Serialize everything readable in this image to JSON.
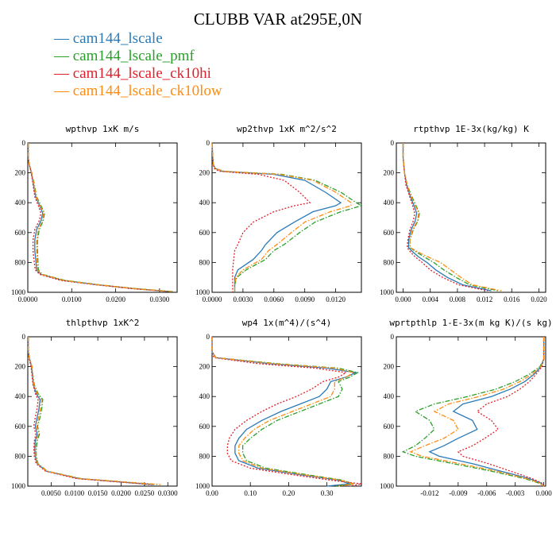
{
  "title": "CLUBB VAR at295E,0N",
  "legend": [
    {
      "label": "cam144_lscale",
      "color": "#2a7ab8"
    },
    {
      "label": "cam144_lscale_pmf",
      "color": "#2aa02a"
    },
    {
      "label": "cam144_lscale_ck10hi",
      "color": "#e0202a"
    },
    {
      "label": "cam144_lscale_ck10low",
      "color": "#ff8c10"
    }
  ],
  "series_styles": [
    "solid",
    "dashdot",
    "dotted",
    "dashdot"
  ],
  "chart_data": [
    {
      "type": "line",
      "title": "wpthvp  1xK m/s",
      "xlim": [
        0,
        0.034
      ],
      "ylim": [
        1000,
        0
      ],
      "y_inverted": true,
      "xticks": [
        "0.0000",
        "0.0100",
        "0.0200",
        "0.0300"
      ],
      "xtick_values": [
        0,
        0.01,
        0.02,
        0.03
      ],
      "yticks": [
        "0",
        "200",
        "400",
        "600",
        "800",
        "1000"
      ],
      "ytick_values": [
        0,
        200,
        400,
        600,
        800,
        1000
      ],
      "y": [
        0,
        100,
        140,
        200,
        280,
        360,
        420,
        470,
        520,
        580,
        650,
        720,
        780,
        850,
        880,
        920,
        950,
        975,
        995
      ],
      "series": [
        {
          "name": "cam144_lscale",
          "x": [
            0.0001,
            0.0001,
            0.0003,
            0.0008,
            0.0013,
            0.0018,
            0.0027,
            0.0034,
            0.003,
            0.002,
            0.0016,
            0.0016,
            0.0018,
            0.002,
            0.003,
            0.008,
            0.016,
            0.024,
            0.0325
          ]
        },
        {
          "name": "cam144_lscale_pmf",
          "x": [
            0.0001,
            0.0001,
            0.0003,
            0.0009,
            0.0015,
            0.002,
            0.003,
            0.0038,
            0.0035,
            0.0026,
            0.0022,
            0.0022,
            0.0023,
            0.0024,
            0.0033,
            0.0085,
            0.0165,
            0.0245,
            0.033
          ]
        },
        {
          "name": "cam144_lscale_ck10hi",
          "x": [
            0.0001,
            0.0001,
            0.0003,
            0.0008,
            0.0012,
            0.0016,
            0.0024,
            0.003,
            0.0026,
            0.0016,
            0.0012,
            0.0012,
            0.0014,
            0.0017,
            0.0027,
            0.0075,
            0.0155,
            0.0235,
            0.032
          ]
        },
        {
          "name": "cam144_lscale_ck10low",
          "x": [
            0.0001,
            0.0001,
            0.0003,
            0.0009,
            0.0014,
            0.0019,
            0.0028,
            0.0036,
            0.0033,
            0.0024,
            0.002,
            0.002,
            0.0021,
            0.0022,
            0.0031,
            0.0082,
            0.0162,
            0.0242,
            0.0328
          ]
        }
      ]
    },
    {
      "type": "line",
      "title": "wp2thvp  1xK m^2/s^2",
      "xlim": [
        0,
        0.0145
      ],
      "ylim": [
        1000,
        0
      ],
      "y_inverted": true,
      "xticks": [
        "0.0000",
        "0.0030",
        "0.0060",
        "0.0090",
        "0.0120"
      ],
      "xtick_values": [
        0,
        0.003,
        0.006,
        0.009,
        0.012
      ],
      "yticks": [
        "0",
        "200",
        "400",
        "600",
        "800",
        "1000"
      ],
      "ytick_values": [
        0,
        200,
        400,
        600,
        800,
        1000
      ],
      "y": [
        0,
        140,
        170,
        190,
        210,
        250,
        330,
        400,
        420,
        460,
        530,
        600,
        680,
        720,
        780,
        850,
        900,
        950,
        1000
      ],
      "series": [
        {
          "name": "cam144_lscale",
          "x": [
            0,
            0.0001,
            0.0003,
            0.001,
            0.006,
            0.009,
            0.011,
            0.0125,
            0.012,
            0.0098,
            0.008,
            0.0063,
            0.0052,
            0.0048,
            0.004,
            0.0025,
            0.0022,
            0.0022,
            0.0022
          ]
        },
        {
          "name": "cam144_lscale_pmf",
          "x": [
            0,
            0.0001,
            0.0003,
            0.0012,
            0.0068,
            0.01,
            0.0125,
            0.014,
            0.0145,
            0.0125,
            0.01,
            0.0085,
            0.007,
            0.006,
            0.0052,
            0.0033,
            0.0024,
            0.0022,
            0.0022
          ]
        },
        {
          "name": "cam144_lscale_ck10hi",
          "x": [
            0,
            0.0001,
            0.0002,
            0.0007,
            0.0045,
            0.007,
            0.0085,
            0.0095,
            0.008,
            0.006,
            0.004,
            0.003,
            0.0025,
            0.0022,
            0.0021,
            0.002,
            0.002,
            0.002,
            0.002
          ]
        },
        {
          "name": "cam144_lscale_ck10low",
          "x": [
            0,
            0.0001,
            0.0003,
            0.0011,
            0.0065,
            0.0098,
            0.012,
            0.0135,
            0.0135,
            0.0115,
            0.009,
            0.0077,
            0.0063,
            0.0055,
            0.0048,
            0.003,
            0.0023,
            0.0022,
            0.0022
          ]
        }
      ]
    },
    {
      "type": "line",
      "title": "rtpthvp  1E-3x(kg/kg) K",
      "xlim": [
        -0.001,
        0.021
      ],
      "ylim": [
        1000,
        0
      ],
      "y_inverted": true,
      "xticks": [
        "0.000",
        "0.004",
        "0.008",
        "0.012",
        "0.016",
        "0.020"
      ],
      "xtick_values": [
        0,
        0.004,
        0.008,
        0.012,
        0.016,
        0.02
      ],
      "yticks": [
        "0",
        "200",
        "400",
        "600",
        "800",
        "1000"
      ],
      "ytick_values": [
        0,
        200,
        400,
        600,
        800,
        1000
      ],
      "y": [
        0,
        100,
        200,
        280,
        350,
        420,
        470,
        520,
        580,
        650,
        700,
        720,
        760,
        800,
        850,
        900,
        950,
        990
      ],
      "series": [
        {
          "name": "cam144_lscale",
          "x": [
            0,
            0,
            0.0002,
            0.0005,
            0.001,
            0.0016,
            0.002,
            0.0018,
            0.0012,
            0.0008,
            0.0008,
            0.0012,
            0.0022,
            0.0035,
            0.0048,
            0.0065,
            0.0088,
            0.013
          ]
        },
        {
          "name": "cam144_lscale_pmf",
          "x": [
            0,
            0,
            0.0002,
            0.0006,
            0.0012,
            0.0019,
            0.0024,
            0.0022,
            0.0015,
            0.001,
            0.001,
            0.0016,
            0.003,
            0.0045,
            0.006,
            0.0078,
            0.0098,
            0.014
          ]
        },
        {
          "name": "cam144_lscale_ck10hi",
          "x": [
            0,
            0,
            0.0002,
            0.0004,
            0.0009,
            0.0014,
            0.0017,
            0.0015,
            0.001,
            0.0007,
            0.0006,
            0.0009,
            0.0017,
            0.0028,
            0.004,
            0.0058,
            0.0082,
            0.0125
          ]
        },
        {
          "name": "cam144_lscale_ck10low",
          "x": [
            0,
            0,
            0.0002,
            0.0006,
            0.0011,
            0.0018,
            0.0023,
            0.0021,
            0.0014,
            0.001,
            0.001,
            0.0018,
            0.0035,
            0.0055,
            0.007,
            0.0085,
            0.0102,
            0.0145
          ]
        }
      ]
    },
    {
      "type": "line",
      "title": "thlpthvp  1xK^2",
      "xlim": [
        0,
        0.032
      ],
      "ylim": [
        1000,
        0
      ],
      "y_inverted": true,
      "xticks": [
        "0.0050",
        "0.0100",
        "0.0150",
        "0.0200",
        "0.0250",
        "0.0300"
      ],
      "xtick_values": [
        0.005,
        0.01,
        0.015,
        0.02,
        0.025,
        0.03
      ],
      "yticks": [
        "0",
        "200",
        "400",
        "600",
        "800",
        "1000"
      ],
      "ytick_values": [
        0,
        200,
        400,
        600,
        800,
        1000
      ],
      "y": [
        0,
        100,
        150,
        200,
        260,
        320,
        380,
        420,
        480,
        540,
        600,
        650,
        700,
        750,
        800,
        850,
        900,
        950,
        990
      ],
      "series": [
        {
          "name": "cam144_lscale",
          "x": [
            0.0001,
            0.0001,
            0.0004,
            0.0008,
            0.001,
            0.0012,
            0.0018,
            0.0026,
            0.0024,
            0.002,
            0.0016,
            0.002,
            0.0016,
            0.0015,
            0.0016,
            0.002,
            0.004,
            0.011,
            0.027
          ]
        },
        {
          "name": "cam144_lscale_pmf",
          "x": [
            0.0001,
            0.0001,
            0.0004,
            0.0009,
            0.0011,
            0.0014,
            0.0022,
            0.0032,
            0.003,
            0.0026,
            0.0021,
            0.0025,
            0.002,
            0.0018,
            0.0018,
            0.0022,
            0.0042,
            0.0115,
            0.028
          ]
        },
        {
          "name": "cam144_lscale_ck10hi",
          "x": [
            0.0001,
            0.0001,
            0.0003,
            0.0007,
            0.0009,
            0.0011,
            0.0016,
            0.0022,
            0.002,
            0.0016,
            0.0013,
            0.0017,
            0.0014,
            0.0013,
            0.0014,
            0.0018,
            0.0038,
            0.0105,
            0.0265
          ]
        },
        {
          "name": "cam144_lscale_ck10low",
          "x": [
            0.0001,
            0.0001,
            0.0004,
            0.0009,
            0.0011,
            0.0013,
            0.002,
            0.0029,
            0.0027,
            0.0023,
            0.0019,
            0.0023,
            0.0018,
            0.0017,
            0.0017,
            0.0021,
            0.0041,
            0.0112,
            0.0285
          ]
        }
      ]
    },
    {
      "type": "line",
      "title": "wp4  1x(m^4)/(s^4)",
      "xlim": [
        0,
        0.39
      ],
      "ylim": [
        1000,
        0
      ],
      "y_inverted": true,
      "xticks": [
        "0.00",
        "0.10",
        "0.20",
        "0.30"
      ],
      "xtick_values": [
        0,
        0.1,
        0.2,
        0.3
      ],
      "yticks": [
        "0",
        "200",
        "400",
        "600",
        "800",
        "1000"
      ],
      "ytick_values": [
        0,
        200,
        400,
        600,
        800,
        1000
      ],
      "y": [
        0,
        100,
        140,
        180,
        210,
        240,
        270,
        300,
        350,
        400,
        450,
        500,
        560,
        620,
        680,
        730,
        780,
        830,
        880,
        920,
        960,
        985,
        1000
      ],
      "series": [
        {
          "name": "cam144_lscale",
          "x": [
            0,
            0,
            0.01,
            0.15,
            0.3,
            0.375,
            0.35,
            0.31,
            0.3,
            0.28,
            0.23,
            0.18,
            0.13,
            0.09,
            0.07,
            0.06,
            0.06,
            0.07,
            0.12,
            0.22,
            0.33,
            0.36,
            0.3
          ]
        },
        {
          "name": "cam144_lscale_pmf",
          "x": [
            0,
            0,
            0.01,
            0.17,
            0.33,
            0.38,
            0.36,
            0.33,
            0.34,
            0.33,
            0.28,
            0.23,
            0.17,
            0.13,
            0.1,
            0.08,
            0.08,
            0.09,
            0.14,
            0.24,
            0.34,
            0.37,
            0.32
          ]
        },
        {
          "name": "cam144_lscale_ck10hi",
          "x": [
            0,
            0,
            0.005,
            0.12,
            0.27,
            0.35,
            0.33,
            0.29,
            0.26,
            0.22,
            0.17,
            0.13,
            0.09,
            0.06,
            0.045,
            0.04,
            0.04,
            0.05,
            0.1,
            0.2,
            0.31,
            0.39,
            0.36
          ]
        },
        {
          "name": "cam144_lscale_ck10low",
          "x": [
            0,
            0,
            0.01,
            0.16,
            0.32,
            0.37,
            0.35,
            0.32,
            0.32,
            0.31,
            0.26,
            0.21,
            0.15,
            0.11,
            0.085,
            0.07,
            0.07,
            0.08,
            0.13,
            0.23,
            0.335,
            0.37,
            0.33
          ]
        }
      ]
    },
    {
      "type": "line",
      "title": "wprtpthlp  1-E-3x(m kg K)/(s kg)",
      "xlim": [
        -0.0155,
        0.0002
      ],
      "ylim": [
        1000,
        0
      ],
      "y_inverted": true,
      "xticks": [
        "-0.012",
        "-0.009",
        "-0.006",
        "-0.003",
        "0.000"
      ],
      "xtick_values": [
        -0.012,
        -0.009,
        -0.006,
        -0.003,
        0
      ],
      "yticks": [
        "0",
        "200",
        "400",
        "600",
        "800",
        "1000"
      ],
      "ytick_values": [
        0,
        200,
        400,
        600,
        800,
        1000
      ],
      "y": [
        0,
        150,
        200,
        250,
        300,
        350,
        400,
        450,
        500,
        560,
        620,
        680,
        730,
        770,
        800,
        850,
        900,
        950,
        980,
        1000
      ],
      "series": [
        {
          "name": "cam144_lscale",
          "x": [
            0,
            0,
            -0.0003,
            -0.001,
            -0.002,
            -0.0035,
            -0.0055,
            -0.0085,
            -0.0095,
            -0.0075,
            -0.007,
            -0.009,
            -0.0105,
            -0.012,
            -0.011,
            -0.0075,
            -0.0045,
            -0.0015,
            -0.0003,
            0
          ]
        },
        {
          "name": "cam144_lscale_pmf",
          "x": [
            0,
            0,
            -0.0004,
            -0.0015,
            -0.003,
            -0.005,
            -0.008,
            -0.0115,
            -0.0135,
            -0.012,
            -0.0115,
            -0.0125,
            -0.0135,
            -0.0148,
            -0.0135,
            -0.0095,
            -0.0055,
            -0.002,
            -0.0005,
            0
          ]
        },
        {
          "name": "cam144_lscale_ck10hi",
          "x": [
            0,
            0,
            -0.0002,
            -0.0008,
            -0.0015,
            -0.0025,
            -0.0038,
            -0.006,
            -0.007,
            -0.0055,
            -0.0048,
            -0.0062,
            -0.0075,
            -0.009,
            -0.0085,
            -0.0058,
            -0.0035,
            -0.0012,
            -0.0002,
            0
          ]
        },
        {
          "name": "cam144_lscale_ck10low",
          "x": [
            0,
            0,
            -0.0003,
            -0.0012,
            -0.0025,
            -0.0042,
            -0.0068,
            -0.01,
            -0.0115,
            -0.0095,
            -0.009,
            -0.0105,
            -0.0125,
            -0.014,
            -0.0128,
            -0.0088,
            -0.005,
            -0.0018,
            -0.0004,
            0
          ]
        }
      ]
    }
  ]
}
